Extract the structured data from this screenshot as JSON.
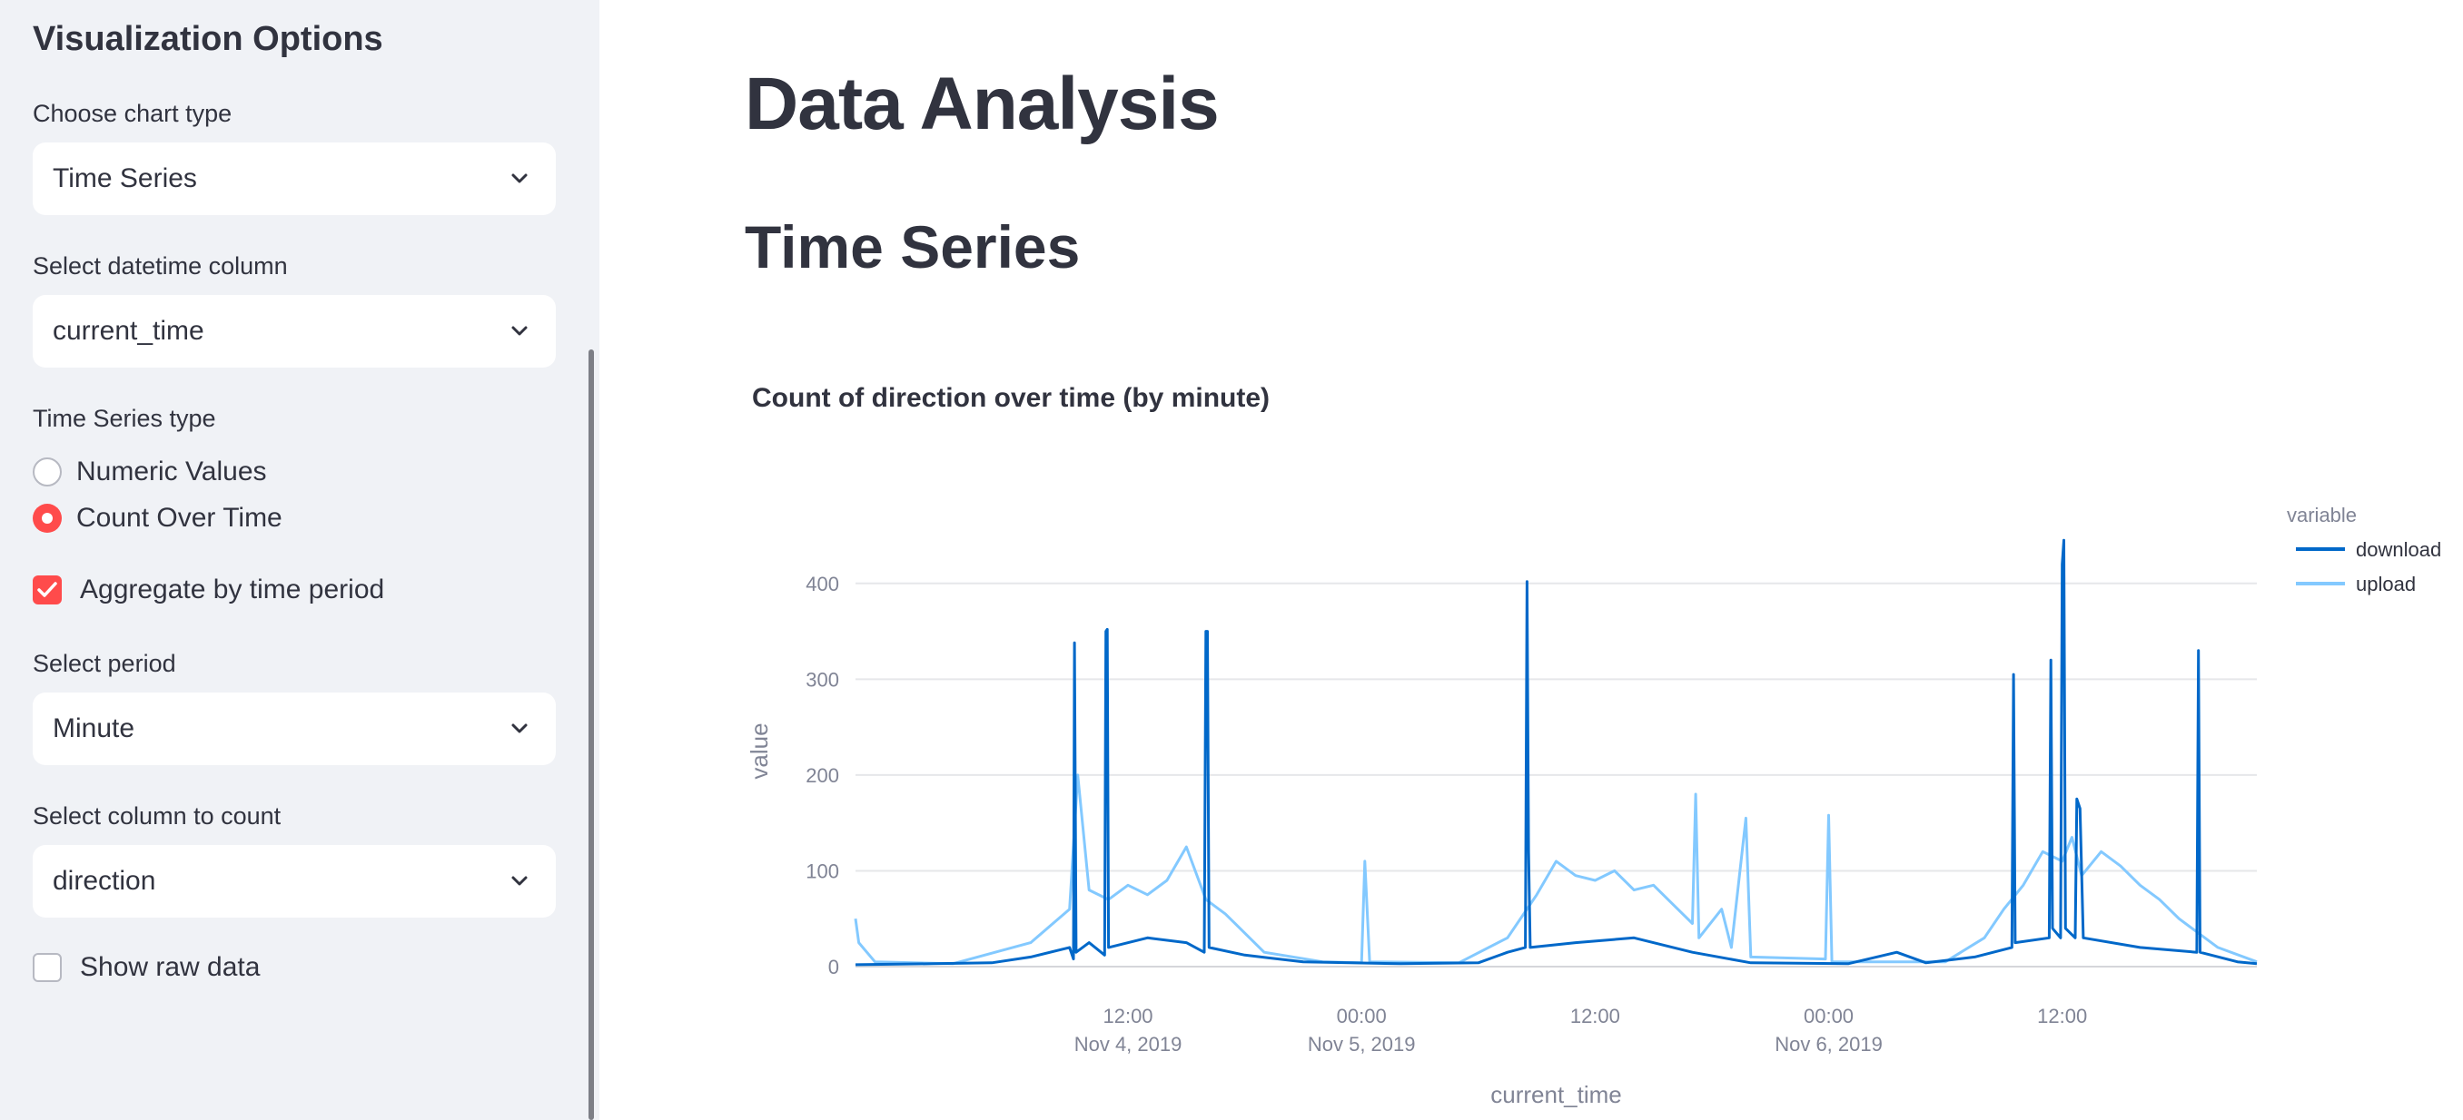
{
  "sidebar": {
    "title": "Visualization Options",
    "chart_type": {
      "label": "Choose chart type",
      "value": "Time Series"
    },
    "datetime_column": {
      "label": "Select datetime column",
      "value": "current_time"
    },
    "ts_type": {
      "label": "Time Series type",
      "options": [
        "Numeric Values",
        "Count Over Time"
      ],
      "selected": "Count Over Time"
    },
    "aggregate": {
      "label": "Aggregate by time period",
      "checked": true
    },
    "period": {
      "label": "Select period",
      "value": "Minute"
    },
    "count_column": {
      "label": "Select column to count",
      "value": "direction"
    },
    "raw_data": {
      "label": "Show raw data",
      "checked": false
    }
  },
  "main": {
    "title": "Data Analysis",
    "section": "Time Series"
  },
  "chart_data": {
    "type": "line",
    "title": "Count of direction over time (by minute)",
    "xlabel": "current_time",
    "ylabel": "value",
    "legend_title": "variable",
    "legend_position": "top-right",
    "grid": true,
    "ylim": [
      0,
      450
    ],
    "yticks": [
      0,
      100,
      200,
      300,
      400
    ],
    "xlim": [
      "2019-11-03 22:00",
      "2019-11-06 22:00"
    ],
    "xticks": [
      {
        "t": "2019-11-04 12:00",
        "line1": "12:00",
        "line2": "Nov 4, 2019"
      },
      {
        "t": "2019-11-05 00:00",
        "line1": "00:00",
        "line2": "Nov 5, 2019"
      },
      {
        "t": "2019-11-05 12:00",
        "line1": "12:00",
        "line2": ""
      },
      {
        "t": "2019-11-06 00:00",
        "line1": "00:00",
        "line2": "Nov 6, 2019"
      },
      {
        "t": "2019-11-06 12:00",
        "line1": "12:00",
        "line2": ""
      }
    ],
    "series": [
      {
        "name": "download",
        "color": "#0068c9",
        "points": [
          [
            "2019-11-03 22:00",
            2
          ],
          [
            "2019-11-04 02:00",
            3
          ],
          [
            "2019-11-04 05:00",
            4
          ],
          [
            "2019-11-04 07:00",
            10
          ],
          [
            "2019-11-04 09:00",
            20
          ],
          [
            "2019-11-04 09:12",
            8
          ],
          [
            "2019-11-04 09:15",
            338
          ],
          [
            "2019-11-04 09:20",
            15
          ],
          [
            "2019-11-04 10:00",
            25
          ],
          [
            "2019-11-04 10:48",
            12
          ],
          [
            "2019-11-04 10:52",
            350
          ],
          [
            "2019-11-04 10:56",
            352
          ],
          [
            "2019-11-04 11:00",
            20
          ],
          [
            "2019-11-04 13:00",
            30
          ],
          [
            "2019-11-04 15:00",
            25
          ],
          [
            "2019-11-04 15:55",
            15
          ],
          [
            "2019-11-04 16:00",
            350
          ],
          [
            "2019-11-04 16:05",
            350
          ],
          [
            "2019-11-04 16:10",
            20
          ],
          [
            "2019-11-04 18:00",
            12
          ],
          [
            "2019-11-04 21:00",
            5
          ],
          [
            "2019-11-05 02:00",
            3
          ],
          [
            "2019-11-05 06:00",
            4
          ],
          [
            "2019-11-05 07:30",
            15
          ],
          [
            "2019-11-05 08:25",
            20
          ],
          [
            "2019-11-05 08:30",
            402
          ],
          [
            "2019-11-05 08:35",
            120
          ],
          [
            "2019-11-05 08:40",
            20
          ],
          [
            "2019-11-05 11:00",
            25
          ],
          [
            "2019-11-05 14:00",
            30
          ],
          [
            "2019-11-05 17:00",
            15
          ],
          [
            "2019-11-05 20:00",
            4
          ],
          [
            "2019-11-06 01:00",
            3
          ],
          [
            "2019-11-06 03:30",
            15
          ],
          [
            "2019-11-06 05:00",
            4
          ],
          [
            "2019-11-06 07:30",
            10
          ],
          [
            "2019-11-06 09:25",
            20
          ],
          [
            "2019-11-06 09:30",
            305
          ],
          [
            "2019-11-06 09:35",
            25
          ],
          [
            "2019-11-06 11:20",
            30
          ],
          [
            "2019-11-06 11:25",
            320
          ],
          [
            "2019-11-06 11:30",
            40
          ],
          [
            "2019-11-06 11:55",
            30
          ],
          [
            "2019-11-06 12:00",
            420
          ],
          [
            "2019-11-06 12:05",
            445
          ],
          [
            "2019-11-06 12:10",
            40
          ],
          [
            "2019-11-06 12:40",
            30
          ],
          [
            "2019-11-06 12:45",
            175
          ],
          [
            "2019-11-06 12:55",
            165
          ],
          [
            "2019-11-06 13:05",
            30
          ],
          [
            "2019-11-06 16:00",
            20
          ],
          [
            "2019-11-06 18:55",
            15
          ],
          [
            "2019-11-06 19:00",
            330
          ],
          [
            "2019-11-06 19:05",
            15
          ],
          [
            "2019-11-06 21:00",
            5
          ],
          [
            "2019-11-06 22:00",
            3
          ]
        ]
      },
      {
        "name": "upload",
        "color": "#83c9ff",
        "points": [
          [
            "2019-11-03 22:00",
            50
          ],
          [
            "2019-11-03 22:10",
            25
          ],
          [
            "2019-11-03 23:00",
            5
          ],
          [
            "2019-11-04 03:00",
            3
          ],
          [
            "2019-11-04 07:00",
            25
          ],
          [
            "2019-11-04 09:00",
            60
          ],
          [
            "2019-11-04 09:25",
            200
          ],
          [
            "2019-11-04 10:00",
            80
          ],
          [
            "2019-11-04 11:00",
            70
          ],
          [
            "2019-11-04 12:00",
            85
          ],
          [
            "2019-11-04 13:00",
            75
          ],
          [
            "2019-11-04 14:00",
            90
          ],
          [
            "2019-11-04 15:00",
            125
          ],
          [
            "2019-11-04 16:00",
            70
          ],
          [
            "2019-11-04 17:00",
            55
          ],
          [
            "2019-11-04 19:00",
            15
          ],
          [
            "2019-11-04 22:00",
            5
          ],
          [
            "2019-11-05 00:00",
            4
          ],
          [
            "2019-11-05 00:10",
            110
          ],
          [
            "2019-11-05 00:25",
            5
          ],
          [
            "2019-11-05 05:00",
            4
          ],
          [
            "2019-11-05 07:30",
            30
          ],
          [
            "2019-11-05 09:00",
            75
          ],
          [
            "2019-11-05 10:00",
            110
          ],
          [
            "2019-11-05 11:00",
            95
          ],
          [
            "2019-11-05 12:00",
            90
          ],
          [
            "2019-11-05 13:00",
            100
          ],
          [
            "2019-11-05 14:00",
            80
          ],
          [
            "2019-11-05 15:00",
            85
          ],
          [
            "2019-11-05 16:00",
            65
          ],
          [
            "2019-11-05 17:00",
            45
          ],
          [
            "2019-11-05 17:10",
            180
          ],
          [
            "2019-11-05 17:20",
            30
          ],
          [
            "2019-11-05 18:30",
            60
          ],
          [
            "2019-11-05 19:00",
            20
          ],
          [
            "2019-11-05 19:45",
            155
          ],
          [
            "2019-11-05 20:00",
            10
          ],
          [
            "2019-11-05 23:50",
            8
          ],
          [
            "2019-11-06 00:00",
            158
          ],
          [
            "2019-11-06 00:10",
            5
          ],
          [
            "2019-11-06 06:00",
            5
          ],
          [
            "2019-11-06 08:00",
            30
          ],
          [
            "2019-11-06 09:00",
            60
          ],
          [
            "2019-11-06 10:00",
            85
          ],
          [
            "2019-11-06 11:00",
            120
          ],
          [
            "2019-11-06 12:00",
            110
          ],
          [
            "2019-11-06 12:30",
            135
          ],
          [
            "2019-11-06 13:00",
            95
          ],
          [
            "2019-11-06 14:00",
            120
          ],
          [
            "2019-11-06 15:00",
            105
          ],
          [
            "2019-11-06 16:00",
            85
          ],
          [
            "2019-11-06 17:00",
            70
          ],
          [
            "2019-11-06 18:00",
            50
          ],
          [
            "2019-11-06 19:00",
            35
          ],
          [
            "2019-11-06 20:00",
            20
          ],
          [
            "2019-11-06 22:00",
            5
          ]
        ]
      }
    ]
  }
}
